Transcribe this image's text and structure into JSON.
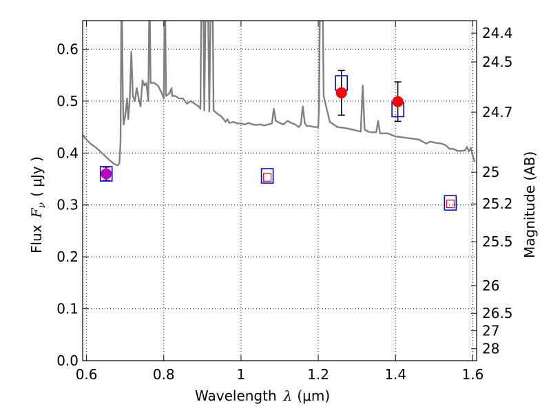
{
  "chart_data": {
    "type": "scatter",
    "title": "",
    "xlabel": "Wavelength",
    "xlabel_symbol": "λ",
    "xlabel_unit": "(μm)",
    "ylabel": "Flux",
    "ylabel_symbol": "F",
    "ylabel_subscript": "ν",
    "ylabel_unit": "( μJy )",
    "y2label": "Magnitude (AB)",
    "xlim": [
      0.59,
      1.61
    ],
    "ylim": [
      0.0,
      0.655
    ],
    "grid": true,
    "xticks": [
      "0.6",
      "0.8",
      "1",
      "1.2",
      "1.4",
      "1.6"
    ],
    "xtick_values": [
      0.6,
      0.8,
      1.0,
      1.2,
      1.4,
      1.6
    ],
    "yticks": [
      "0.0",
      "0.1",
      "0.2",
      "0.3",
      "0.4",
      "0.5",
      "0.6"
    ],
    "ytick_values": [
      0.0,
      0.1,
      0.2,
      0.3,
      0.4,
      0.5,
      0.6
    ],
    "mag_ticks": [
      {
        "label": "24.4",
        "mag": 24.4
      },
      {
        "label": "24.5",
        "mag": 24.5
      },
      {
        "label": "24.7",
        "mag": 24.7
      },
      {
        "label": "25",
        "mag": 25.0
      },
      {
        "label": "25.2",
        "mag": 25.2
      },
      {
        "label": "25.5",
        "mag": 25.5
      },
      {
        "label": "26",
        "mag": 26.0
      },
      {
        "label": "26.5",
        "mag": 26.5
      },
      {
        "label": "27",
        "mag": 27.0
      },
      {
        "label": "28",
        "mag": 28.0
      }
    ],
    "colors": {
      "model": "#808080",
      "observed": "#ff0000",
      "observed_first": "#c000c0",
      "error_bar": "#000000",
      "model_phot_blue": "#0000ff",
      "model_phot_red": "#ff0000",
      "grid": "#000000"
    },
    "series": [
      {
        "name": "SED model",
        "type": "line",
        "points": [
          [
            0.59,
            0.435
          ],
          [
            0.6,
            0.426
          ],
          [
            0.61,
            0.418
          ],
          [
            0.62,
            0.413
          ],
          [
            0.63,
            0.407
          ],
          [
            0.64,
            0.4
          ],
          [
            0.65,
            0.393
          ],
          [
            0.66,
            0.386
          ],
          [
            0.67,
            0.38
          ],
          [
            0.675,
            0.378
          ],
          [
            0.68,
            0.376
          ],
          [
            0.685,
            0.38
          ],
          [
            0.688,
            0.42
          ],
          [
            0.69,
            0.655
          ],
          [
            0.692,
            0.655
          ],
          [
            0.694,
            0.51
          ],
          [
            0.696,
            0.455
          ],
          [
            0.7,
            0.47
          ],
          [
            0.705,
            0.505
          ],
          [
            0.708,
            0.465
          ],
          [
            0.712,
            0.505
          ],
          [
            0.716,
            0.595
          ],
          [
            0.72,
            0.51
          ],
          [
            0.725,
            0.5
          ],
          [
            0.73,
            0.525
          ],
          [
            0.735,
            0.505
          ],
          [
            0.74,
            0.49
          ],
          [
            0.745,
            0.54
          ],
          [
            0.75,
            0.53
          ],
          [
            0.755,
            0.535
          ],
          [
            0.76,
            0.5
          ],
          [
            0.762,
            0.655
          ],
          [
            0.764,
            0.655
          ],
          [
            0.766,
            0.535
          ],
          [
            0.775,
            0.535
          ],
          [
            0.785,
            0.53
          ],
          [
            0.795,
            0.515
          ],
          [
            0.8,
            0.505
          ],
          [
            0.802,
            0.655
          ],
          [
            0.804,
            0.655
          ],
          [
            0.806,
            0.51
          ],
          [
            0.815,
            0.515
          ],
          [
            0.82,
            0.525
          ],
          [
            0.822,
            0.51
          ],
          [
            0.83,
            0.51
          ],
          [
            0.84,
            0.505
          ],
          [
            0.85,
            0.505
          ],
          [
            0.86,
            0.495
          ],
          [
            0.87,
            0.5
          ],
          [
            0.88,
            0.495
          ],
          [
            0.89,
            0.49
          ],
          [
            0.895,
            0.485
          ],
          [
            0.897,
            0.655
          ],
          [
            0.903,
            0.655
          ],
          [
            0.905,
            0.482
          ],
          [
            0.908,
            0.655
          ],
          [
            0.915,
            0.655
          ],
          [
            0.918,
            0.48
          ],
          [
            0.921,
            0.655
          ],
          [
            0.927,
            0.655
          ],
          [
            0.929,
            0.482
          ],
          [
            0.94,
            0.475
          ],
          [
            0.95,
            0.47
          ],
          [
            0.96,
            0.46
          ],
          [
            0.965,
            0.465
          ],
          [
            0.97,
            0.458
          ],
          [
            0.98,
            0.46
          ],
          [
            0.99,
            0.457
          ],
          [
            1.0,
            0.457
          ],
          [
            1.01,
            0.455
          ],
          [
            1.02,
            0.458
          ],
          [
            1.03,
            0.455
          ],
          [
            1.04,
            0.454
          ],
          [
            1.05,
            0.455
          ],
          [
            1.06,
            0.453
          ],
          [
            1.07,
            0.455
          ],
          [
            1.08,
            0.457
          ],
          [
            1.085,
            0.485
          ],
          [
            1.09,
            0.462
          ],
          [
            1.1,
            0.458
          ],
          [
            1.11,
            0.455
          ],
          [
            1.12,
            0.462
          ],
          [
            1.13,
            0.458
          ],
          [
            1.14,
            0.455
          ],
          [
            1.15,
            0.45
          ],
          [
            1.155,
            0.455
          ],
          [
            1.16,
            0.49
          ],
          [
            1.165,
            0.458
          ],
          [
            1.17,
            0.452
          ],
          [
            1.18,
            0.452
          ],
          [
            1.19,
            0.45
          ],
          [
            1.2,
            0.45
          ],
          [
            1.202,
            0.49
          ],
          [
            1.204,
            0.655
          ],
          [
            1.212,
            0.655
          ],
          [
            1.214,
            0.51
          ],
          [
            1.23,
            0.46
          ],
          [
            1.25,
            0.45
          ],
          [
            1.27,
            0.448
          ],
          [
            1.29,
            0.445
          ],
          [
            1.31,
            0.441
          ],
          [
            1.315,
            0.53
          ],
          [
            1.32,
            0.445
          ],
          [
            1.33,
            0.441
          ],
          [
            1.34,
            0.44
          ],
          [
            1.35,
            0.44
          ],
          [
            1.355,
            0.462
          ],
          [
            1.36,
            0.438
          ],
          [
            1.38,
            0.438
          ],
          [
            1.4,
            0.432
          ],
          [
            1.42,
            0.43
          ],
          [
            1.44,
            0.428
          ],
          [
            1.46,
            0.426
          ],
          [
            1.47,
            0.422
          ],
          [
            1.48,
            0.418
          ],
          [
            1.49,
            0.422
          ],
          [
            1.5,
            0.42
          ],
          [
            1.52,
            0.418
          ],
          [
            1.53,
            0.415
          ],
          [
            1.54,
            0.408
          ],
          [
            1.55,
            0.408
          ],
          [
            1.56,
            0.404
          ],
          [
            1.57,
            0.404
          ],
          [
            1.58,
            0.405
          ],
          [
            1.585,
            0.412
          ],
          [
            1.59,
            0.403
          ],
          [
            1.595,
            0.41
          ],
          [
            1.6,
            0.395
          ],
          [
            1.605,
            0.383
          ]
        ]
      },
      {
        "name": "Observed photometry",
        "type": "errorbar",
        "points": [
          {
            "x": 0.651,
            "y": 0.36,
            "yerr": 0.013
          },
          {
            "x": 1.26,
            "y": 0.516,
            "yerr": 0.043
          },
          {
            "x": 1.406,
            "y": 0.499,
            "yerr": 0.038
          }
        ]
      },
      {
        "name": "Model photometry (large)",
        "type": "scatter",
        "marker": "square",
        "points": [
          {
            "x": 0.651,
            "y": 0.36
          },
          {
            "x": 1.068,
            "y": 0.356
          },
          {
            "x": 1.26,
            "y": 0.535
          },
          {
            "x": 1.406,
            "y": 0.484
          },
          {
            "x": 1.542,
            "y": 0.304
          }
        ]
      },
      {
        "name": "Model photometry (small)",
        "type": "scatter",
        "marker": "square",
        "points": [
          {
            "x": 1.068,
            "y": 0.353
          },
          {
            "x": 1.542,
            "y": 0.302
          }
        ]
      }
    ]
  }
}
